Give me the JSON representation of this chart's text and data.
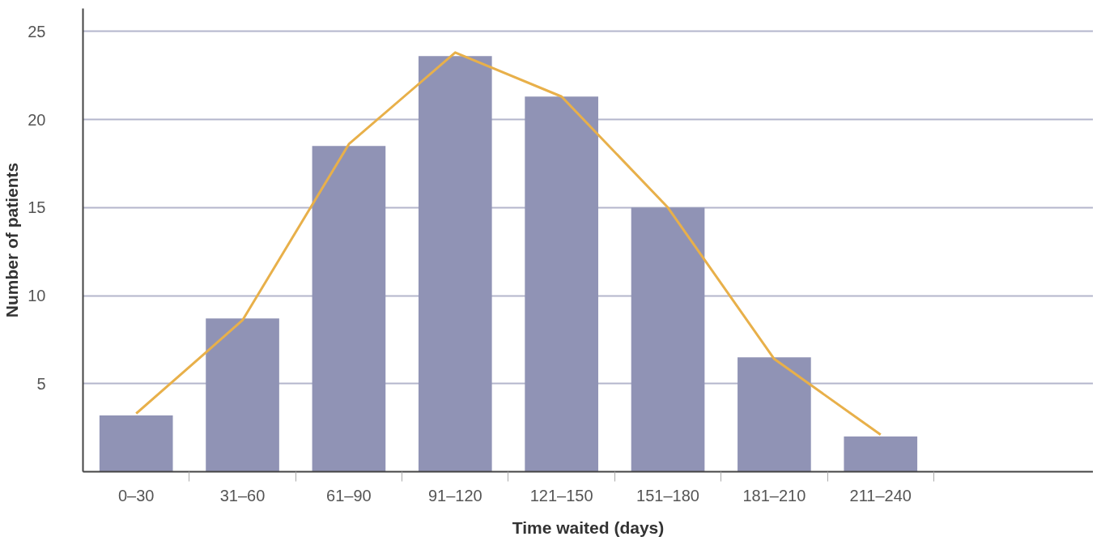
{
  "chart_data": {
    "type": "bar",
    "xlabel": "Time waited (days)",
    "ylabel": "Number of patients",
    "categories": [
      "0–30",
      "31–60",
      "61–90",
      "91–120",
      "121–150",
      "151–180",
      "181–210",
      "211–240"
    ],
    "series": [
      {
        "color": "#9093b5",
        "values": [
          3.2,
          8.7,
          18.5,
          23.6,
          21.3,
          15.0,
          6.5,
          2.0
        ]
      },
      {
        "type": "line",
        "color": "#e8b04a",
        "values": [
          3.3,
          8.6,
          18.6,
          23.8,
          21.3,
          15.0,
          6.4,
          2.1
        ]
      }
    ],
    "ylim": [
      0,
      26.3
    ],
    "yticks": [
      5,
      10,
      15,
      20,
      25
    ],
    "grid": "y",
    "marker": "none",
    "line_style": "solid"
  }
}
